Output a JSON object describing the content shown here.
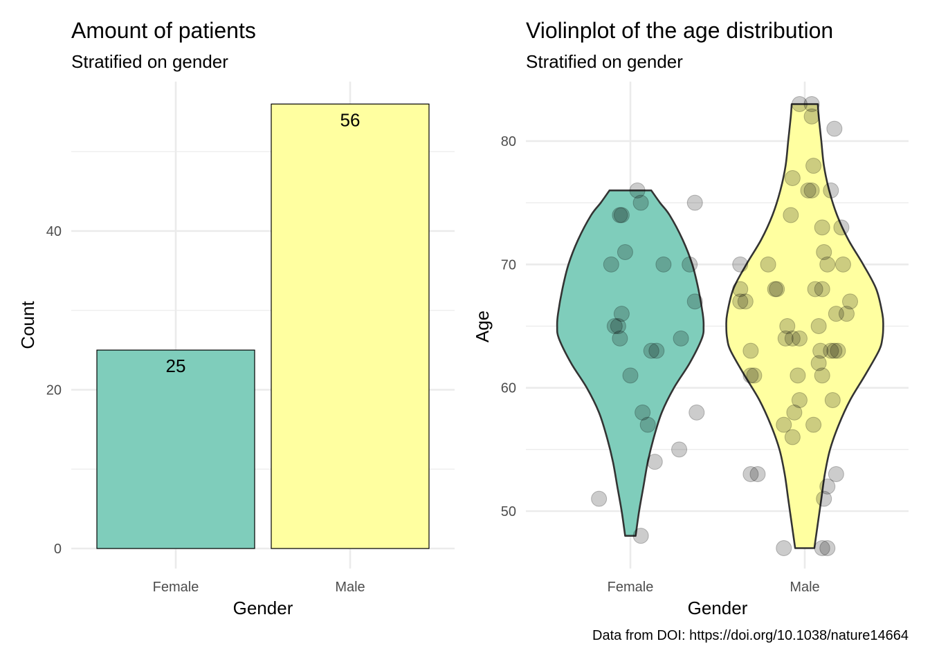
{
  "caption": "Data from DOI: https://doi.org/10.1038/nature14664",
  "colors": {
    "female": "#7FCDBB",
    "male": "#FFFFA0",
    "outline": "#000000",
    "violin_outline": "#333333",
    "points": "#000000"
  },
  "chart_data": [
    {
      "type": "bar",
      "title": "Amount of patients",
      "subtitle": "Stratified on gender",
      "xlabel": "Gender",
      "ylabel": "Count",
      "categories": [
        "Female",
        "Male"
      ],
      "values": [
        25,
        56
      ],
      "data_labels": [
        "25",
        "56"
      ],
      "ylim": [
        0,
        59
      ],
      "yticks": [
        0,
        20,
        40
      ],
      "yticks_minor": [
        10,
        30,
        50
      ],
      "grid": true
    },
    {
      "type": "violin",
      "title": "Violinplot of the age distribution",
      "subtitle": "Stratified on gender",
      "xlabel": "Gender",
      "ylabel": "Age",
      "categories": [
        "Female",
        "Male"
      ],
      "ylim": [
        45.2,
        84.8
      ],
      "yticks": [
        50,
        60,
        70,
        80
      ],
      "yticks_minor": [
        55,
        65,
        75
      ],
      "grid": true,
      "series": [
        {
          "name": "Female",
          "range": [
            48,
            76
          ],
          "profile": [
            [
              48,
              0.06
            ],
            [
              50,
              0.1
            ],
            [
              52,
              0.15
            ],
            [
              54,
              0.2
            ],
            [
              56,
              0.27
            ],
            [
              58,
              0.36
            ],
            [
              60,
              0.5
            ],
            [
              62,
              0.68
            ],
            [
              64,
              0.82
            ],
            [
              65,
              0.84
            ],
            [
              66,
              0.83
            ],
            [
              68,
              0.78
            ],
            [
              70,
              0.71
            ],
            [
              72,
              0.6
            ],
            [
              74,
              0.45
            ],
            [
              75,
              0.34
            ],
            [
              76,
              0.24
            ]
          ],
          "points": [
            [
              0.04,
              76
            ],
            [
              -0.05,
              74
            ],
            [
              -0.06,
              74
            ],
            [
              0.06,
              75
            ],
            [
              0.37,
              75
            ],
            [
              -0.03,
              71
            ],
            [
              -0.11,
              70
            ],
            [
              0.19,
              70
            ],
            [
              0.34,
              70
            ],
            [
              0.37,
              67
            ],
            [
              -0.05,
              66
            ],
            [
              -0.09,
              65
            ],
            [
              -0.07,
              65
            ],
            [
              -0.06,
              64
            ],
            [
              0.29,
              64
            ],
            [
              0.12,
              63
            ],
            [
              0.15,
              63
            ],
            [
              0.0,
              61
            ],
            [
              0.38,
              58
            ],
            [
              0.07,
              58
            ],
            [
              0.1,
              57
            ],
            [
              0.28,
              55
            ],
            [
              0.14,
              54
            ],
            [
              -0.18,
              51
            ],
            [
              0.06,
              48
            ]
          ]
        },
        {
          "name": "Male",
          "range": [
            47,
            83
          ],
          "profile": [
            [
              47,
              0.11
            ],
            [
              49,
              0.15
            ],
            [
              51,
              0.19
            ],
            [
              53,
              0.23
            ],
            [
              55,
              0.29
            ],
            [
              57,
              0.39
            ],
            [
              59,
              0.52
            ],
            [
              61,
              0.69
            ],
            [
              63,
              0.85
            ],
            [
              64,
              0.89
            ],
            [
              65,
              0.9
            ],
            [
              66,
              0.89
            ],
            [
              68,
              0.82
            ],
            [
              70,
              0.67
            ],
            [
              72,
              0.5
            ],
            [
              74,
              0.37
            ],
            [
              76,
              0.28
            ],
            [
              78,
              0.22
            ],
            [
              80,
              0.19
            ],
            [
              82,
              0.16
            ],
            [
              83,
              0.15
            ]
          ],
          "points": [
            [
              -0.03,
              83
            ],
            [
              0.04,
              83
            ],
            [
              0.04,
              82
            ],
            [
              0.17,
              81
            ],
            [
              0.05,
              78
            ],
            [
              -0.07,
              77
            ],
            [
              0.02,
              76
            ],
            [
              0.04,
              76
            ],
            [
              0.15,
              76
            ],
            [
              -0.08,
              74
            ],
            [
              0.1,
              73
            ],
            [
              0.21,
              73
            ],
            [
              0.11,
              71
            ],
            [
              0.13,
              70
            ],
            [
              0.22,
              70
            ],
            [
              -0.21,
              70
            ],
            [
              -0.37,
              70
            ],
            [
              -0.37,
              68
            ],
            [
              -0.17,
              68
            ],
            [
              -0.16,
              68
            ],
            [
              0.06,
              68
            ],
            [
              0.1,
              68
            ],
            [
              -0.37,
              67
            ],
            [
              -0.34,
              67
            ],
            [
              0.26,
              67
            ],
            [
              0.18,
              66
            ],
            [
              0.24,
              66
            ],
            [
              -0.1,
              65
            ],
            [
              0.08,
              65
            ],
            [
              -0.11,
              64
            ],
            [
              -0.07,
              64
            ],
            [
              -0.03,
              64
            ],
            [
              0.09,
              63
            ],
            [
              0.15,
              63
            ],
            [
              0.17,
              63
            ],
            [
              -0.31,
              63
            ],
            [
              0.19,
              63
            ],
            [
              0.08,
              62
            ],
            [
              -0.04,
              61
            ],
            [
              0.1,
              61
            ],
            [
              -0.31,
              61
            ],
            [
              -0.29,
              61
            ],
            [
              -0.03,
              59
            ],
            [
              0.16,
              59
            ],
            [
              -0.06,
              58
            ],
            [
              -0.12,
              57
            ],
            [
              0.05,
              57
            ],
            [
              -0.07,
              56
            ],
            [
              0.18,
              53
            ],
            [
              -0.31,
              53
            ],
            [
              -0.27,
              53
            ],
            [
              0.13,
              52
            ],
            [
              0.11,
              51
            ],
            [
              -0.12,
              47
            ],
            [
              0.1,
              47
            ],
            [
              0.13,
              47
            ]
          ]
        }
      ]
    }
  ]
}
